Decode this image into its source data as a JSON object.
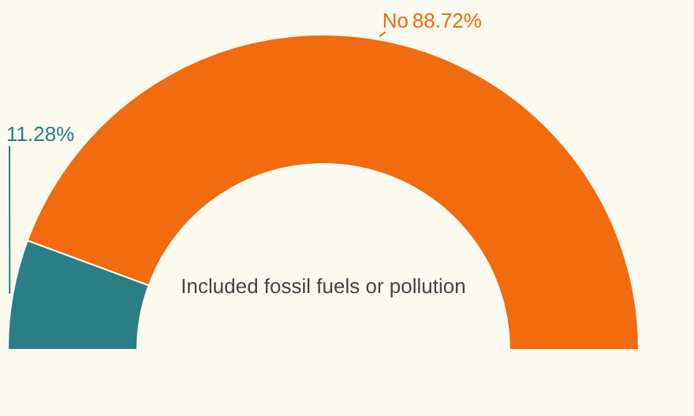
{
  "chart_data": {
    "type": "donut",
    "categories": [
      null,
      "No"
    ],
    "values": [
      11.28,
      88.72
    ],
    "colors": [
      "#2a7f86",
      "#f26b0f"
    ],
    "value_labels": [
      "11.28%",
      "88.72%"
    ],
    "annotations": [
      "Included fossil fuels or pollution"
    ],
    "legend": false
  }
}
